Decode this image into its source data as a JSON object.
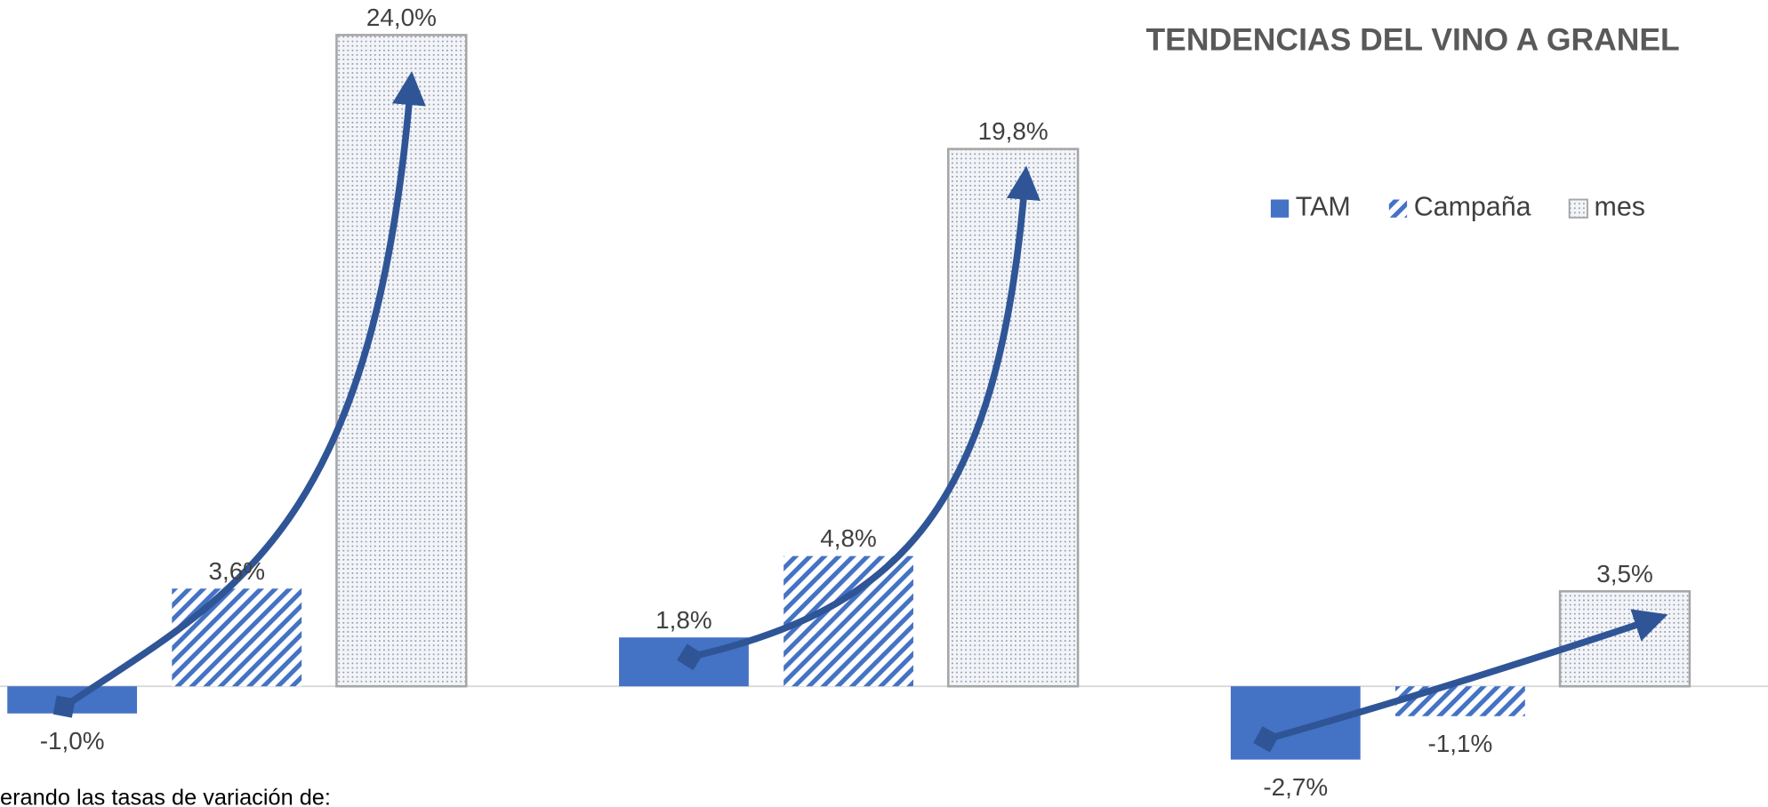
{
  "chart_data": {
    "type": "bar",
    "title": "TENDENCIAS DEL VINO A GRANEL",
    "categories": [
      null,
      null,
      null
    ],
    "series": [
      {
        "name": "TAM",
        "color": "#4472c4",
        "values": [
          -1.0,
          1.8,
          -2.7
        ],
        "value_labels": [
          "-1,0%",
          "1,8%",
          "-2,7%"
        ]
      },
      {
        "name": "Campaña",
        "color": "#4472c4",
        "values": [
          3.6,
          4.8,
          -1.1
        ],
        "value_labels": [
          "3,6%",
          "4,8%",
          "-1,1%"
        ]
      },
      {
        "name": "mes",
        "color": "#a6a6a6",
        "values": [
          24.0,
          19.8,
          3.5
        ],
        "value_labels": [
          "24,0%",
          "19,8%",
          "3,5%"
        ]
      }
    ],
    "ylim": [
      -4,
      25
    ],
    "legend": "top-right",
    "footnote": "erando las tasas de variación de:"
  }
}
